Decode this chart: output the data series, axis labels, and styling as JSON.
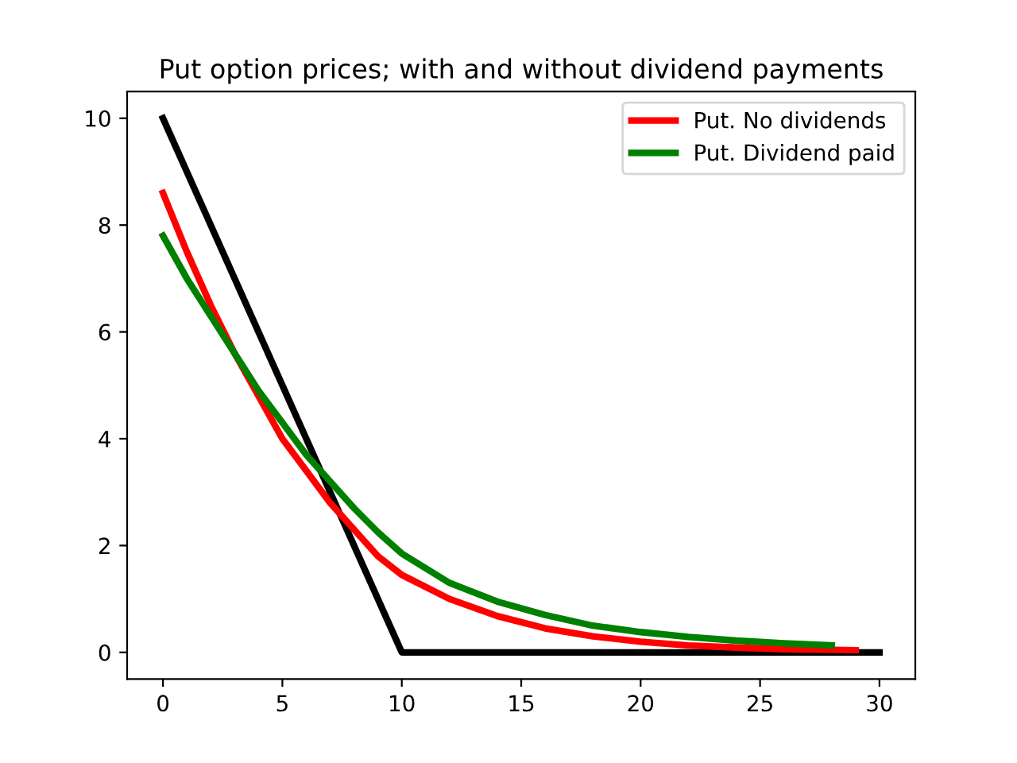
{
  "chart_data": {
    "type": "line",
    "title": "Put option prices; with and without dividend payments",
    "series": [
      {
        "name": null,
        "color": "#000000",
        "x": [
          0,
          10,
          30
        ],
        "values": [
          10,
          0,
          0
        ]
      },
      {
        "name": "Put. No dividends",
        "color": "#ff0000",
        "x": [
          0,
          1,
          2,
          3,
          4,
          5,
          6,
          7,
          8,
          9,
          10,
          12,
          14,
          16,
          18,
          20,
          22,
          24,
          26,
          29
        ],
        "values": [
          8.6,
          7.5,
          6.5,
          5.6,
          4.8,
          4.0,
          3.4,
          2.8,
          2.3,
          1.8,
          1.45,
          1.0,
          0.68,
          0.45,
          0.3,
          0.2,
          0.13,
          0.09,
          0.06,
          0.04
        ]
      },
      {
        "name": "Put. Dividend paid",
        "color": "#008000",
        "x": [
          0,
          1,
          2,
          3,
          4,
          5,
          6,
          7,
          8,
          9,
          10,
          12,
          14,
          16,
          18,
          20,
          22,
          24,
          26,
          28
        ],
        "values": [
          7.8,
          7.0,
          6.3,
          5.6,
          4.9,
          4.3,
          3.7,
          3.2,
          2.7,
          2.25,
          1.85,
          1.3,
          0.95,
          0.7,
          0.5,
          0.38,
          0.29,
          0.22,
          0.17,
          0.13
        ]
      }
    ],
    "xlim": [
      -1.5,
      31.5
    ],
    "ylim": [
      -0.5,
      10.5
    ],
    "xticks": [
      0,
      5,
      10,
      15,
      20,
      25,
      30
    ],
    "yticks": [
      0,
      2,
      4,
      6,
      8,
      10
    ],
    "grid": false,
    "legend": "top right",
    "marker": "none",
    "line_style": "solid"
  }
}
